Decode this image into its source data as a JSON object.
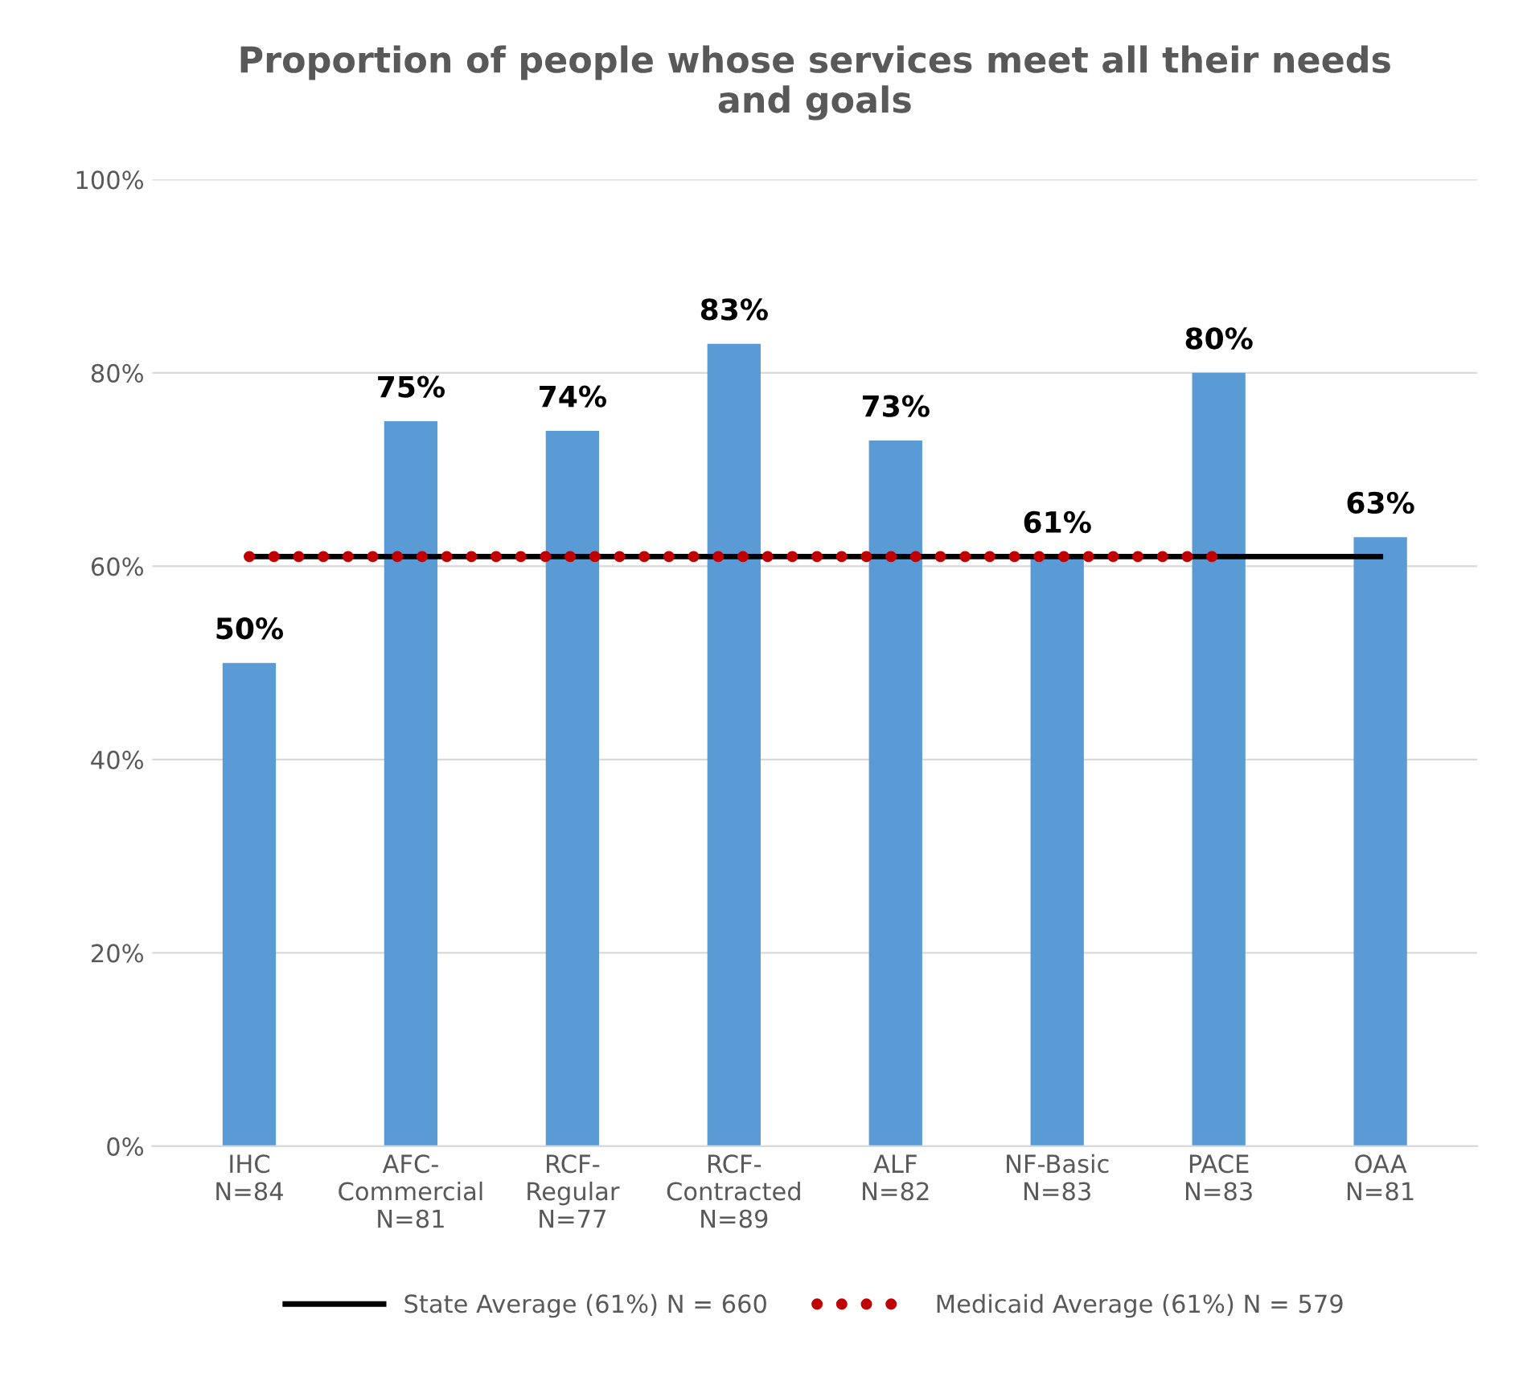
{
  "chart_data": {
    "type": "bar",
    "title": "Proportion of people whose services meet all their needs\nand goals",
    "categories": [
      "IHC\nN=84",
      "AFC-\nCommercial\nN=81",
      "RCF-\nRegular\nN=77",
      "RCF-\nContracted\nN=89",
      "ALF\nN=82",
      "NF-Basic\nN=83",
      "PACE\nN=83",
      "OAA\nN=81"
    ],
    "series": [
      {
        "color": "#5b9bd5",
        "values": [
          50,
          75,
          74,
          83,
          73,
          61,
          80,
          63
        ],
        "value_labels": [
          "50%",
          "75%",
          "74%",
          "83%",
          "73%",
          "61%",
          "80%",
          "63%"
        ]
      },
      {
        "type": "line",
        "name": "State Average (61%) N = 660",
        "color": "#000000",
        "line_style": "solid",
        "marker": "none",
        "values": [
          61,
          61,
          61,
          61,
          61,
          61,
          61,
          61
        ]
      },
      {
        "type": "line",
        "name": "Medicaid Average (61%) N = 579",
        "color": "#c00000",
        "line_style": "dotted",
        "values": [
          61,
          61,
          61,
          61,
          61,
          61,
          61,
          null
        ]
      }
    ],
    "ylim": [
      0,
      100
    ],
    "yticks": [
      {
        "value": 0,
        "label": "0%"
      },
      {
        "value": 20,
        "label": "20%"
      },
      {
        "value": 40,
        "label": "40%"
      },
      {
        "value": 60,
        "label": "60%"
      },
      {
        "value": 80,
        "label": "80%"
      },
      {
        "value": 100,
        "label": "100%"
      }
    ],
    "grid": "y",
    "legend": "bottom"
  }
}
